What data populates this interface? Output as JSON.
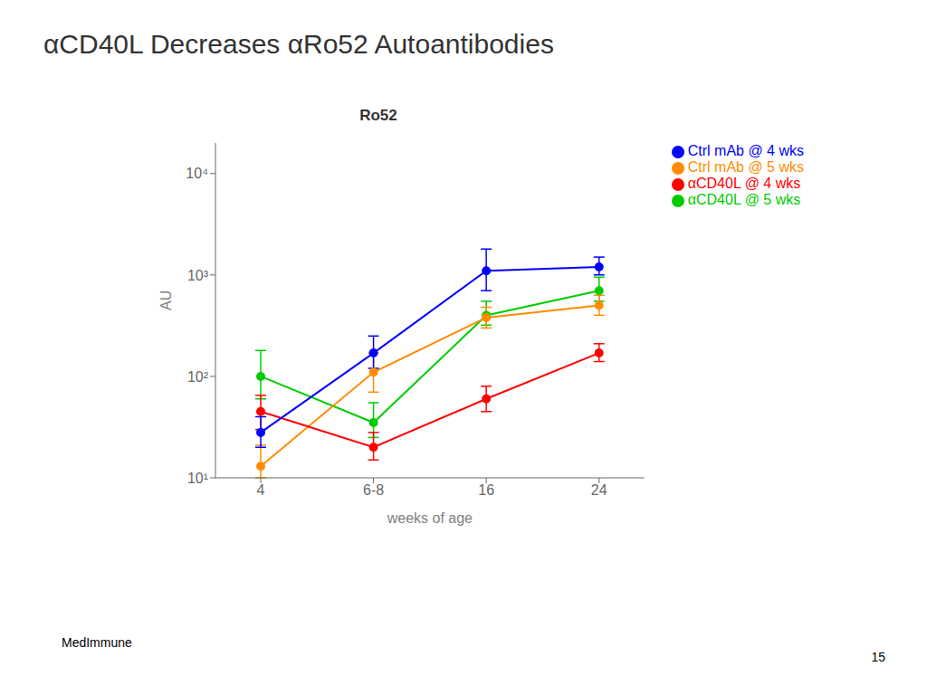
{
  "chart_data": {
    "type": "line",
    "title": "αCD40L  Decreases αRo52 Autoantibodies",
    "subtitle": "Ro52",
    "annotations": [
      "MedImmune",
      "15"
    ],
    "xlabel": "weeks of age",
    "ylabel": "AU",
    "categories": [
      "4",
      "6-8",
      "16",
      "24"
    ],
    "series": [
      {
        "name": "αCD40L @ 5 wks",
        "color": "#00CC00",
        "marker": "circle",
        "values": [
          100,
          35,
          400,
          700
        ],
        "yerr_low": [
          40,
          10,
          80,
          150
        ],
        "yerr_high": [
          80,
          20,
          150,
          250
        ]
      },
      {
        "name": "Ctrl mAb @ 5 wks",
        "color": "#FF8C00",
        "marker": "circle",
        "values": [
          13,
          110,
          380,
          500
        ],
        "yerr_low": [
          3,
          40,
          80,
          100
        ],
        "yerr_high": [
          8,
          60,
          100,
          130
        ]
      },
      {
        "name": "αCD40L @ 4 wks",
        "color": "#FF0000",
        "marker": "circle",
        "values": [
          45,
          20,
          60,
          170
        ],
        "yerr_low": [
          15,
          5,
          15,
          30
        ],
        "yerr_high": [
          20,
          8,
          20,
          40
        ]
      },
      {
        "name": "Ctrl mAb @ 4 wks",
        "color": "#0000FF",
        "marker": "circle",
        "values": [
          28,
          170,
          1100,
          1200
        ],
        "yerr_low": [
          8,
          50,
          400,
          200
        ],
        "yerr_high": [
          12,
          80,
          700,
          300
        ]
      }
    ],
    "log": "y",
    "ylim": [
      10,
      20000
    ],
    "yticks": [
      {
        "value": 10,
        "label": "10¹"
      },
      {
        "value": 100,
        "label": "10²"
      },
      {
        "value": 1000,
        "label": "10³"
      },
      {
        "value": 10000,
        "label": "10⁴"
      }
    ],
    "legend": "right",
    "grid": false
  }
}
